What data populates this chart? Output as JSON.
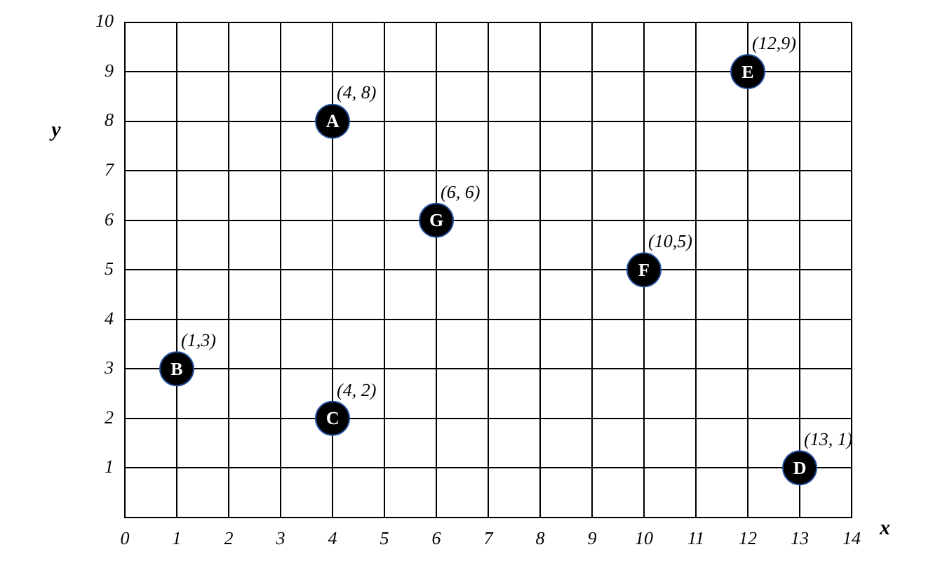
{
  "chart_data": {
    "type": "scatter",
    "xlabel": "x",
    "ylabel": "y",
    "x": [
      4,
      1,
      4,
      13,
      12,
      10,
      6
    ],
    "series": [
      {
        "color": "#000000",
        "values": [
          8,
          3,
          2,
          1,
          9,
          5,
          6
        ],
        "value_labels": [
          "A",
          "B",
          "C",
          "D",
          "E",
          "F",
          "G"
        ]
      }
    ],
    "xlim": [
      0,
      14
    ],
    "xticks": [
      0,
      1,
      2,
      3,
      4,
      5,
      6,
      7,
      8,
      9,
      10,
      11,
      12,
      13,
      14
    ],
    "ylim": [
      0,
      10
    ],
    "yticks": [
      {
        "value": 0,
        "label": null
      },
      1,
      2,
      3,
      4,
      5,
      6,
      7,
      8,
      9,
      10
    ],
    "grid": true,
    "legend": false,
    "marker": "circle",
    "annotations": [
      {
        "text": "(4, 8)",
        "x": 4,
        "y": 8
      },
      {
        "text": "(1,3)",
        "x": 1,
        "y": 3
      },
      {
        "text": "(4, 2)",
        "x": 4,
        "y": 2
      },
      {
        "text": "(13, 1)",
        "x": 13,
        "y": 1
      },
      {
        "text": "(12,9)",
        "x": 12,
        "y": 9
      },
      {
        "text": "(10,5)",
        "x": 10,
        "y": 5
      },
      {
        "text": "(6, 6)",
        "x": 6,
        "y": 6
      }
    ]
  }
}
